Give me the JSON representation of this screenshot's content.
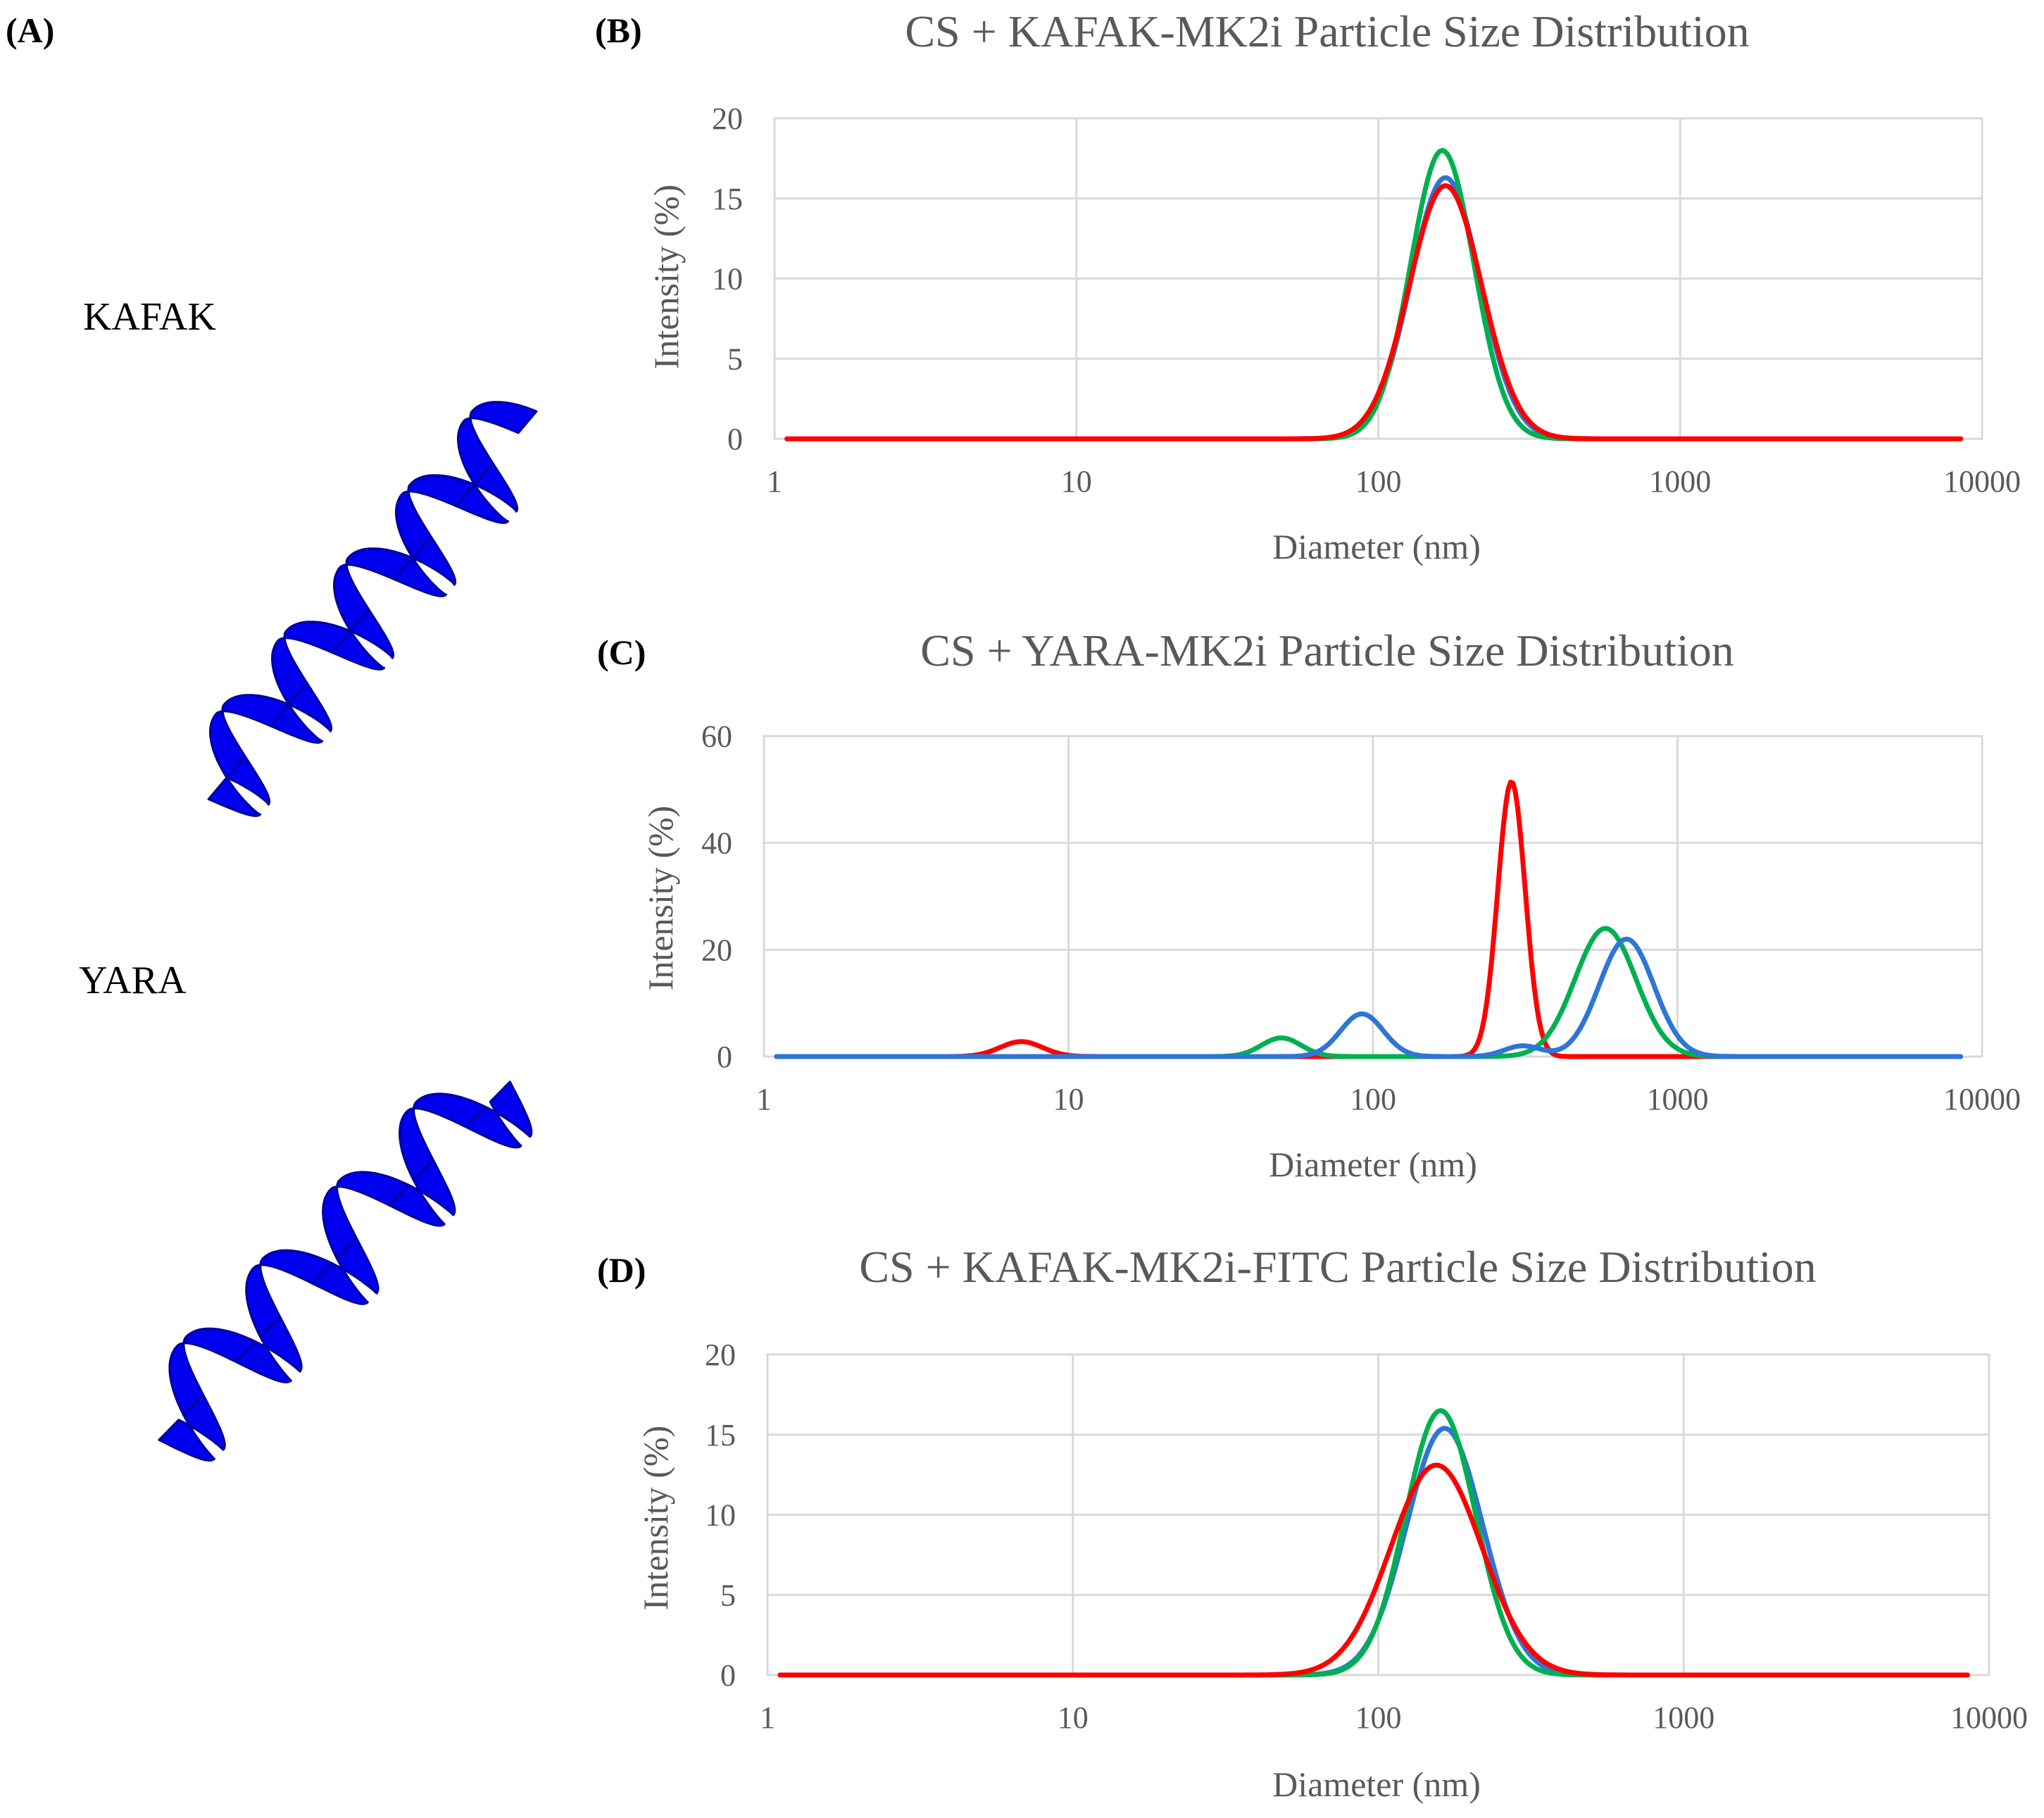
{
  "panel_a": {
    "label": "(A)",
    "peptides": [
      "KAFAK",
      "YARA"
    ]
  },
  "colors": {
    "red": "#ff0000",
    "green": "#00b050",
    "blue": "#2e75d6",
    "grid": "#d9d9d9",
    "text": "#595959"
  },
  "chart_data": [
    {
      "panel": "(B)",
      "type": "line",
      "title": "CS + KAFAK-MK2i Particle Size Distribution",
      "xlabel": "Diameter (nm)",
      "ylabel": "Intensity (%)",
      "xscale": "log",
      "xlim": [
        1,
        10000
      ],
      "ylim": [
        0,
        20
      ],
      "xticks": [
        "1",
        "10",
        "100",
        "1000",
        "10000"
      ],
      "yticks": [
        0,
        5,
        10,
        15,
        20
      ],
      "x_range_data": [
        1.1,
        8500
      ],
      "series": [
        {
          "color": "blue",
          "peaks": [
            {
              "center": 167,
              "height": 16.3,
              "sigma": 0.115
            }
          ]
        },
        {
          "color": "green",
          "peaks": [
            {
              "center": 163,
              "height": 18.0,
              "sigma": 0.105
            }
          ]
        },
        {
          "color": "red",
          "peaks": [
            {
              "center": 167,
              "height": 15.8,
              "sigma": 0.12
            }
          ]
        }
      ]
    },
    {
      "panel": "(C)",
      "type": "line",
      "title": "CS + YARA-MK2i Particle Size Distribution",
      "xlabel": "Diameter (nm)",
      "ylabel": "Intensity (%)",
      "xscale": "log",
      "xlim": [
        1,
        10000
      ],
      "ylim": [
        0,
        60
      ],
      "xticks": [
        "1",
        "10",
        "100",
        "1000",
        "10000"
      ],
      "yticks": [
        0,
        20,
        40,
        60
      ],
      "x_range_data": [
        1.1,
        8500
      ],
      "series": [
        {
          "color": "red",
          "peaks": [
            {
              "center": 7,
              "height": 2.8,
              "sigma": 0.07
            },
            {
              "center": 285,
              "height": 51.5,
              "sigma": 0.045
            }
          ]
        },
        {
          "color": "green",
          "peaks": [
            {
              "center": 50,
              "height": 3.5,
              "sigma": 0.065
            },
            {
              "center": 580,
              "height": 24.0,
              "sigma": 0.1
            }
          ]
        },
        {
          "color": "blue",
          "peaks": [
            {
              "center": 92,
              "height": 8.0,
              "sigma": 0.07
            },
            {
              "center": 310,
              "height": 2.0,
              "sigma": 0.06
            },
            {
              "center": 680,
              "height": 22.0,
              "sigma": 0.09
            }
          ]
        }
      ]
    },
    {
      "panel": "(D)",
      "type": "line",
      "title": "CS + KAFAK-MK2i-FITC Particle Size Distribution",
      "xlabel": "Diameter (nm)",
      "ylabel": "Intensity (%)",
      "xscale": "log",
      "xlim": [
        1,
        10000
      ],
      "ylim": [
        0,
        20
      ],
      "xticks": [
        "1",
        "10",
        "100",
        "1000",
        "10000"
      ],
      "yticks": [
        0,
        5,
        10,
        15,
        20
      ],
      "x_range_data": [
        1.1,
        8500
      ],
      "series": [
        {
          "color": "blue",
          "peaks": [
            {
              "center": 165,
              "height": 15.4,
              "sigma": 0.125
            }
          ]
        },
        {
          "color": "green",
          "peaks": [
            {
              "center": 160,
              "height": 16.5,
              "sigma": 0.115
            }
          ]
        },
        {
          "color": "red",
          "peaks": [
            {
              "center": 155,
              "height": 13.1,
              "sigma": 0.15
            }
          ]
        }
      ]
    }
  ]
}
